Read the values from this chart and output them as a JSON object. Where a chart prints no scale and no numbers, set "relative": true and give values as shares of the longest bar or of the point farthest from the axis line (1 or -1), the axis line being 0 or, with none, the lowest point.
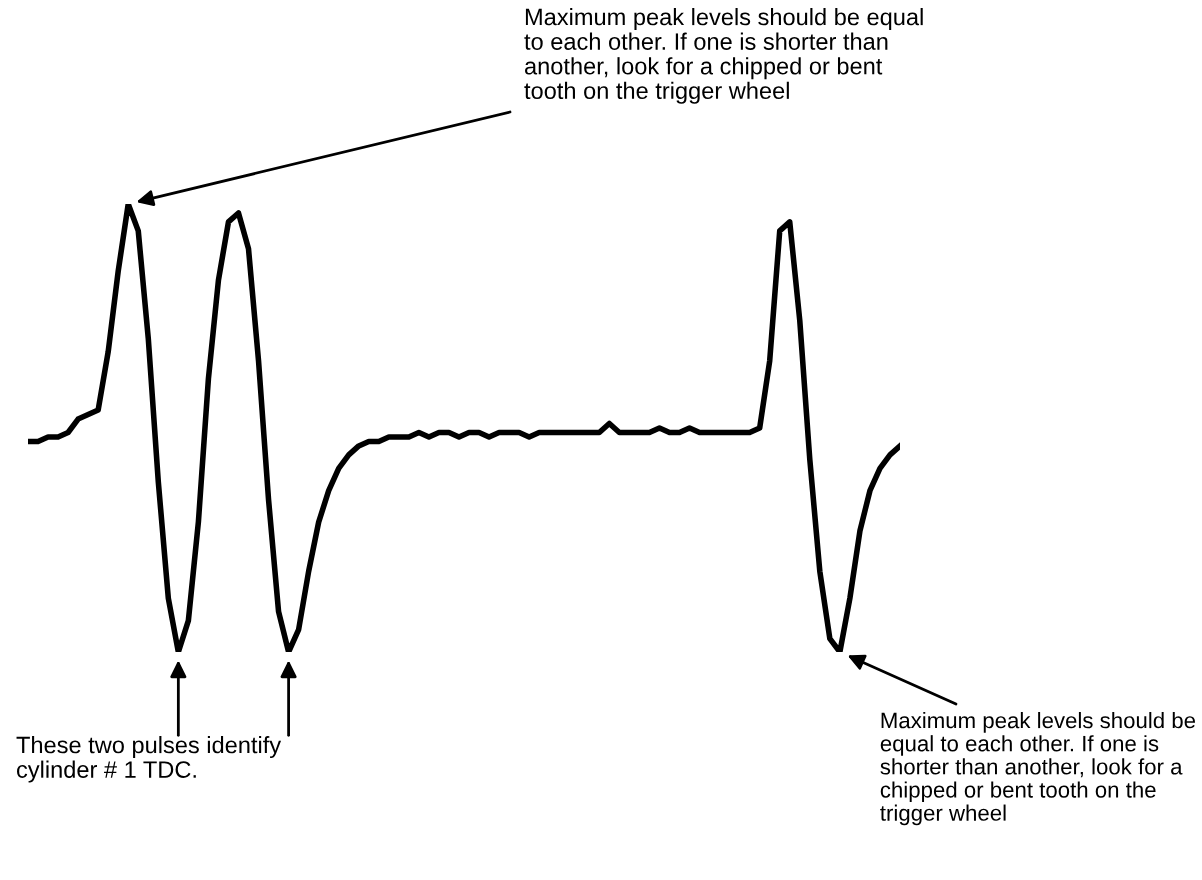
{
  "chart_data": {
    "type": "line",
    "relative": true,
    "color": "#000000",
    "categories": [
      null,
      null,
      null,
      null,
      null,
      null,
      null,
      null,
      null,
      null,
      null,
      null,
      null,
      null,
      null,
      null,
      null,
      null,
      null,
      null,
      null,
      null,
      null,
      null,
      null,
      null,
      null,
      null,
      null,
      null,
      null,
      null,
      null,
      null,
      null,
      null,
      null,
      null,
      null,
      null,
      null,
      null,
      null,
      null,
      null,
      null,
      null,
      null,
      null,
      null,
      null,
      null,
      null,
      null,
      null,
      null,
      null,
      null,
      null,
      null,
      null,
      null,
      null,
      null,
      null,
      null,
      null,
      null,
      null,
      null,
      null,
      null,
      null,
      null,
      null,
      null,
      null,
      null,
      null,
      null,
      null,
      null,
      null,
      null,
      null,
      null,
      null,
      null
    ],
    "values": [
      0.47,
      0.47,
      0.48,
      0.48,
      0.49,
      0.52,
      0.53,
      0.54,
      0.67,
      0.85,
      1.0,
      0.94,
      0.7,
      0.38,
      0.12,
      0,
      0.07,
      0.29,
      0.61,
      0.83,
      0.96,
      0.98,
      0.9,
      0.65,
      0.34,
      0.09,
      0,
      0.05,
      0.18,
      0.29,
      0.36,
      0.41,
      0.44,
      0.46,
      0.47,
      0.47,
      0.48,
      0.48,
      0.48,
      0.49,
      0.48,
      0.49,
      0.49,
      0.48,
      0.49,
      0.49,
      0.48,
      0.49,
      0.49,
      0.49,
      0.48,
      0.49,
      0.49,
      0.49,
      0.49,
      0.49,
      0.49,
      0.49,
      0.51,
      0.49,
      0.49,
      0.49,
      0.49,
      0.5,
      0.49,
      0.49,
      0.5,
      0.49,
      0.49,
      0.49,
      0.49,
      0.49,
      0.49,
      0.5,
      0.65,
      0.94,
      0.96,
      0.74,
      0.43,
      0.18,
      0.03,
      0,
      0.12,
      0.27,
      0.36,
      0.41,
      0.44,
      0.46
    ],
    "annotations": [
      "Maximum peak levels should be equal\nto each other. If one is shorter than\nanother, look for a chipped or bent\ntooth on the trigger wheel",
      "These two pulses identify\ncylinder # 1 TDC.",
      "Maximum peak levels should be\nequal to each other. If one is\nshorter than another, look for a\nchipped or bent tooth on the\ntrigger wheel"
    ]
  }
}
